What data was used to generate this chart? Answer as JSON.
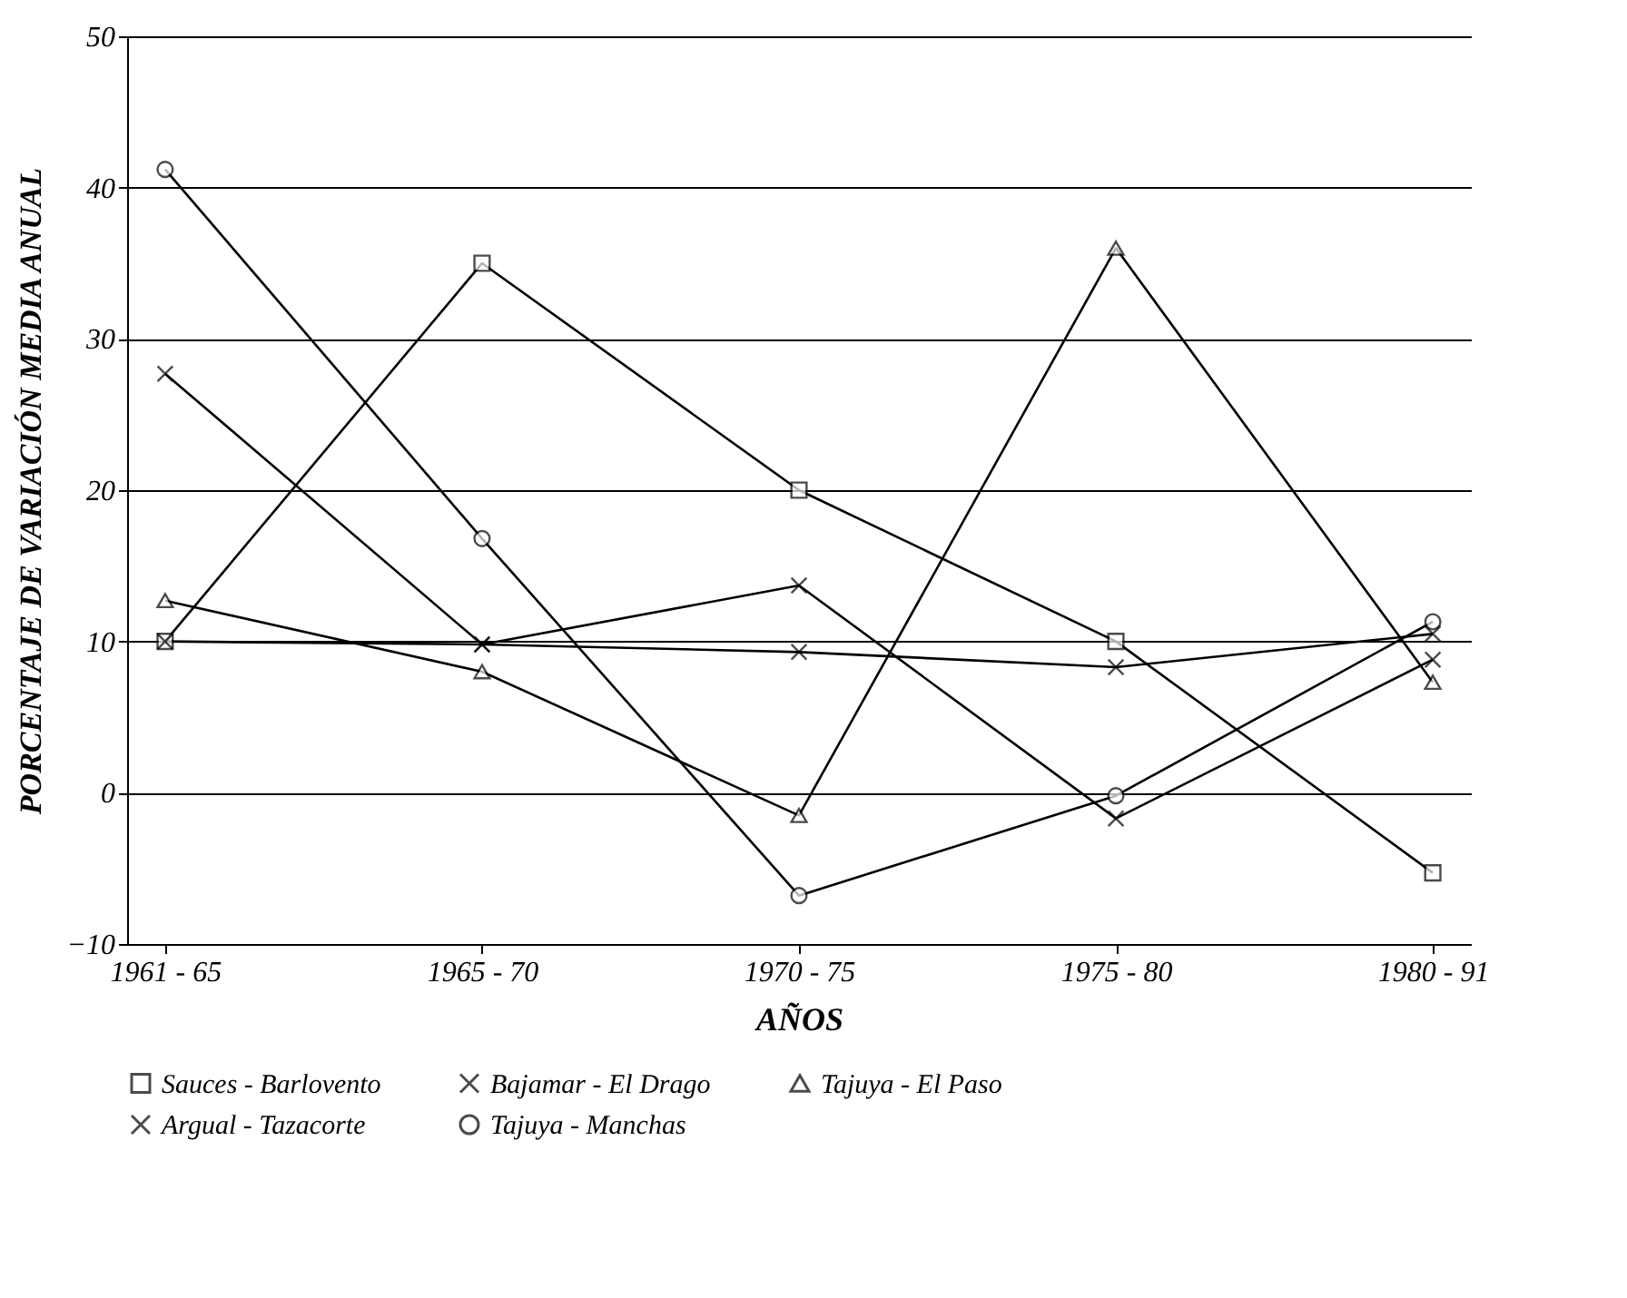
{
  "chart_data": {
    "type": "line",
    "xlabel": "AÑOS",
    "ylabel": "PORCENTAJE DE VARIACIÓN MEDIA ANUAL",
    "categories": [
      "1961 - 65",
      "1965 - 70",
      "1970 - 75",
      "1975 - 80",
      "1980 - 91"
    ],
    "ylim": [
      -10,
      50
    ],
    "yticks": [
      -10,
      0,
      10,
      20,
      30,
      40,
      50
    ],
    "grid": "y",
    "legend": "bottom",
    "series": [
      {
        "name": "Sauces - Barlovento",
        "color": "#000000",
        "marker": "square",
        "values": [
          10,
          35,
          20,
          10,
          -5.3
        ]
      },
      {
        "name": "Bajamar - El Drago",
        "color": "#000000",
        "marker": "cross",
        "values": [
          10,
          9.8,
          9.3,
          8.3,
          10.5
        ]
      },
      {
        "name": "Tajuya - El Paso",
        "color": "#000000",
        "marker": "triangle",
        "values": [
          12.7,
          8,
          -1.5,
          36,
          7.3
        ]
      },
      {
        "name": "Argual - Tazacorte",
        "color": "#000000",
        "marker": "cross",
        "values": [
          27.7,
          9.8,
          13.7,
          -1.7,
          8.8
        ]
      },
      {
        "name": "Tajuya - Manchas",
        "color": "#000000",
        "marker": "circle",
        "values": [
          41.2,
          16.8,
          -6.8,
          -0.2,
          11.3
        ]
      }
    ]
  }
}
